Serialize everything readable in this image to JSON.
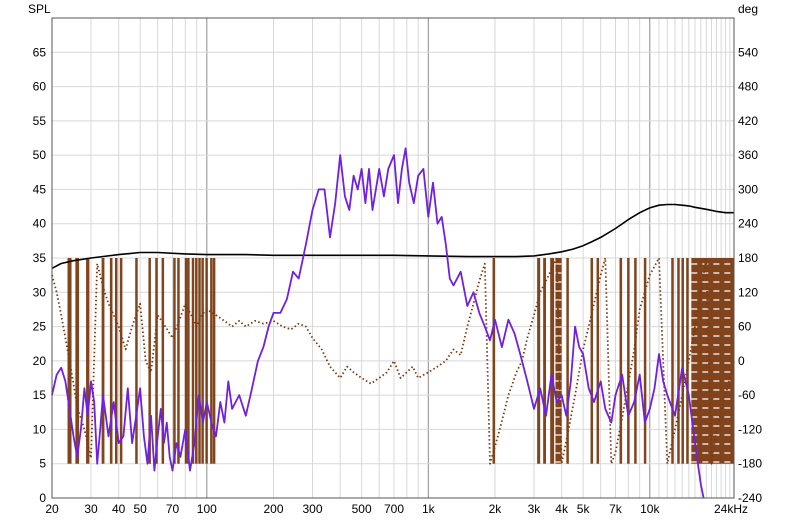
{
  "chart_data": {
    "type": "line",
    "left_axis_label": "SPL",
    "right_axis_label": "deg",
    "x_scale": "log",
    "xlim": [
      20,
      24000
    ],
    "ylim_left": [
      0,
      70
    ],
    "ylim_right": [
      -240,
      600
    ],
    "x_ticks": [
      20,
      30,
      40,
      50,
      70,
      100,
      200,
      300,
      500,
      700,
      1000,
      2000,
      3000,
      4000,
      5000,
      7000,
      10000,
      24000
    ],
    "x_tick_labels": [
      "20",
      "30",
      "40",
      "50",
      "70",
      "100",
      "200",
      "300",
      "500",
      "700",
      "1k",
      "2k",
      "3k",
      "4k",
      "5k",
      "7k",
      "10k",
      "24kHz"
    ],
    "y_left_ticks": [
      0,
      5,
      10,
      15,
      20,
      25,
      30,
      35,
      40,
      45,
      50,
      55,
      60,
      65
    ],
    "y_right_ticks": [
      -240,
      -180,
      -120,
      -60,
      0,
      60,
      120,
      180,
      240,
      300,
      360,
      420,
      480,
      540
    ],
    "grid": true,
    "colors": {
      "spl": "#7020e0",
      "reference": "#000000",
      "phase": "#7a3a10",
      "grid_minor": "#d8d8d8",
      "grid_major": "#8c8c8c"
    },
    "series": [
      {
        "id": "spl",
        "axis": "left",
        "style": "solid",
        "x": [
          20,
          21,
          22,
          23,
          24,
          25,
          26,
          27,
          28,
          29,
          30,
          31,
          32,
          33,
          34,
          35,
          36,
          38,
          40,
          42,
          44,
          46,
          48,
          50,
          52,
          54,
          56,
          58,
          60,
          62,
          64,
          66,
          68,
          70,
          73,
          76,
          80,
          84,
          88,
          92,
          96,
          100,
          105,
          110,
          115,
          120,
          125,
          130,
          140,
          150,
          160,
          170,
          180,
          190,
          200,
          215,
          230,
          245,
          260,
          280,
          300,
          320,
          340,
          360,
          380,
          400,
          420,
          440,
          460,
          480,
          500,
          520,
          540,
          560,
          580,
          600,
          630,
          660,
          700,
          730,
          760,
          790,
          820,
          860,
          900,
          950,
          1000,
          1050,
          1100,
          1150,
          1200,
          1250,
          1300,
          1400,
          1500,
          1600,
          1700,
          1800,
          1900,
          2000,
          2150,
          2300,
          2450,
          2600,
          2800,
          3000,
          3200,
          3400,
          3600,
          3800,
          4000,
          4200,
          4400,
          4600,
          4800,
          5000,
          5300,
          5600,
          6000,
          6300,
          6700,
          7000,
          7500,
          8000,
          8500,
          9000,
          9500,
          10000,
          10500,
          11000,
          11500,
          12000,
          13000,
          14000,
          15000,
          16000,
          17000,
          17500
        ],
        "y": [
          15,
          18,
          19,
          17,
          13,
          9,
          6,
          10,
          16,
          12,
          17,
          14,
          5,
          10,
          15,
          12,
          9,
          14,
          8,
          9,
          16,
          8,
          12,
          16,
          9,
          5,
          12,
          4,
          9,
          13,
          8,
          11,
          6,
          4,
          8,
          6,
          10,
          4,
          8,
          15,
          11,
          14,
          11,
          9,
          14,
          11,
          17,
          13,
          15,
          12,
          16,
          20,
          22,
          25,
          27,
          27,
          29,
          33,
          32,
          37,
          42,
          45,
          45,
          38,
          43,
          50,
          44,
          42,
          47,
          45,
          48,
          43,
          48,
          42,
          45,
          48,
          44,
          48,
          50,
          43,
          48,
          51,
          46,
          43,
          47,
          48,
          41,
          46,
          40,
          41,
          37,
          32,
          31,
          33,
          28,
          30,
          27,
          25,
          23,
          26,
          22,
          26,
          24,
          21,
          17,
          13,
          16,
          12,
          18,
          14,
          15,
          12,
          17,
          25,
          22,
          21,
          16,
          14,
          17,
          13,
          11,
          15,
          18,
          12,
          14,
          18,
          11,
          13,
          16,
          21,
          17,
          15,
          12,
          19,
          15,
          8,
          2,
          0
        ],
        "name": ""
      },
      {
        "id": "reference",
        "axis": "left",
        "style": "solid",
        "x": [
          20,
          22,
          25,
          30,
          40,
          50,
          60,
          80,
          100,
          150,
          200,
          300,
          500,
          700,
          1000,
          1500,
          2000,
          2500,
          3000,
          3500,
          4000,
          4500,
          5000,
          5500,
          6000,
          7000,
          8000,
          9000,
          10000,
          11000,
          12000,
          13000,
          14000,
          15000,
          16000,
          18000,
          20000,
          22000,
          24000
        ],
        "y": [
          33.5,
          34.2,
          34.6,
          35.0,
          35.5,
          35.8,
          35.8,
          35.6,
          35.5,
          35.5,
          35.4,
          35.4,
          35.4,
          35.4,
          35.3,
          35.2,
          35.2,
          35.2,
          35.3,
          35.6,
          35.9,
          36.3,
          36.8,
          37.4,
          38.0,
          39.3,
          40.6,
          41.6,
          42.3,
          42.7,
          42.8,
          42.8,
          42.7,
          42.6,
          42.4,
          42.1,
          41.8,
          41.6,
          41.6
        ],
        "name": ""
      },
      {
        "id": "phase",
        "axis": "right",
        "style": "dotted",
        "x": [
          20,
          21,
          22,
          23,
          24,
          25,
          26,
          28,
          30,
          32,
          34,
          36,
          38,
          40,
          43,
          46,
          50,
          53,
          56,
          60,
          65,
          70,
          75,
          80,
          85,
          90,
          95,
          100,
          110,
          120,
          130,
          140,
          150,
          165,
          180,
          200,
          220,
          240,
          260,
          280,
          300,
          330,
          360,
          400,
          430,
          460,
          500,
          550,
          600,
          650,
          700,
          750,
          800,
          850,
          900,
          1000,
          1100,
          1200,
          1300,
          1400,
          1500,
          1600,
          1700,
          1800,
          1900,
          2000,
          2100,
          2200,
          2300,
          2400,
          2500,
          2650,
          2800,
          3000,
          3200,
          3500,
          3800,
          4000,
          4300,
          4600,
          5000,
          5300,
          5600,
          6000,
          6300,
          6700,
          7000,
          7500,
          8000,
          8500,
          9000,
          10000,
          11000,
          12000,
          13000,
          14000,
          15000,
          16000,
          17000,
          18000,
          19000,
          20000,
          22000,
          24000
        ],
        "y": [
          150,
          120,
          80,
          40,
          0,
          -40,
          -80,
          -120,
          -170,
          170,
          130,
          100,
          80,
          60,
          20,
          60,
          100,
          0,
          -20,
          80,
          60,
          40,
          70,
          100,
          80,
          60,
          80,
          90,
          80,
          70,
          60,
          70,
          60,
          70,
          65,
          70,
          60,
          55,
          65,
          60,
          40,
          20,
          -10,
          -30,
          -10,
          -20,
          -30,
          -40,
          -30,
          -20,
          0,
          -30,
          -20,
          -10,
          -30,
          -20,
          -10,
          0,
          20,
          10,
          60,
          100,
          140,
          170,
          -180,
          -150,
          -120,
          -90,
          -60,
          -40,
          -20,
          0,
          40,
          80,
          120,
          150,
          180,
          -180,
          -120,
          -60,
          20,
          60,
          100,
          150,
          180,
          -180,
          -160,
          -100,
          -40,
          20,
          90,
          150,
          180,
          -180,
          -120,
          -60,
          0,
          60,
          120,
          180,
          -180,
          -120,
          -60,
          0
        ],
        "name": ""
      }
    ],
    "phase_wrap_bands": [
      [
        23.5,
        24.5
      ],
      [
        25.5,
        26.5
      ],
      [
        28.5,
        29.5
      ],
      [
        33.5,
        34.5
      ],
      [
        36.5,
        37.5
      ],
      [
        38.5,
        39.5
      ],
      [
        40.5,
        41.5
      ],
      [
        47.5,
        48.5
      ],
      [
        54.5,
        55.5
      ],
      [
        58.5,
        59.5
      ],
      [
        62.5,
        63.5
      ],
      [
        70.5,
        71.5
      ],
      [
        73.5,
        74.5
      ],
      [
        79.5,
        80.5
      ],
      [
        81.5,
        82.5
      ],
      [
        85.5,
        86.5
      ],
      [
        88.5,
        89.5
      ],
      [
        91.5,
        92.5
      ],
      [
        94.5,
        95.5
      ],
      [
        98.5,
        99.5
      ],
      [
        103.5,
        104.5
      ],
      [
        106.5,
        107.5
      ],
      [
        1950,
        2000
      ],
      [
        3100,
        3200
      ],
      [
        3300,
        3400
      ],
      [
        3550,
        3700
      ],
      [
        3750,
        4000
      ],
      [
        4200,
        4300
      ],
      [
        5400,
        5500
      ],
      [
        5750,
        5850
      ],
      [
        7300,
        7500
      ],
      [
        7900,
        8000
      ],
      [
        8500,
        8600
      ],
      [
        9400,
        9600
      ],
      [
        12500,
        12700
      ],
      [
        13300,
        13500
      ],
      [
        13900,
        14100
      ],
      [
        14600,
        14800
      ],
      [
        15400,
        24000
      ]
    ]
  }
}
